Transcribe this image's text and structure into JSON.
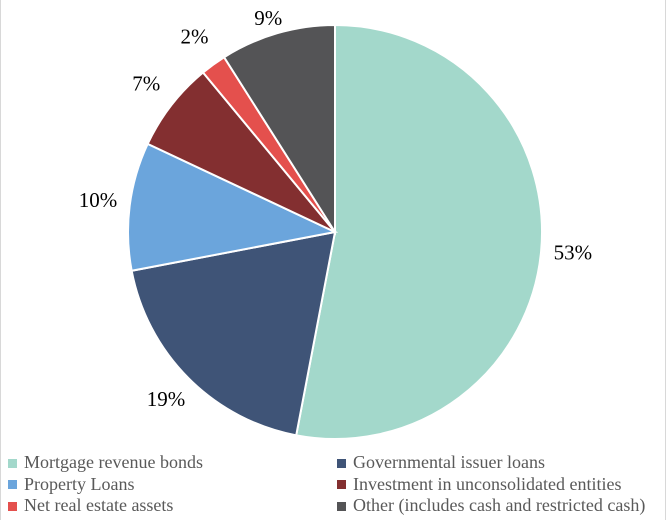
{
  "chart_data": {
    "type": "pie",
    "title": "",
    "direction": "clockwise",
    "start_angle_deg": 0,
    "data_labels": "percent-outside",
    "legend_position": "bottom",
    "legend_columns": 2,
    "label_color": "#000000",
    "legend_text_color": "#595959",
    "slice_border_color": "#ffffff",
    "slices": [
      {
        "label": "Mortgage revenue bonds",
        "value": 53,
        "display": "53%",
        "color": "#a3d8cb"
      },
      {
        "label": "Governmental issuer loans",
        "value": 19,
        "display": "19%",
        "color": "#3f5477"
      },
      {
        "label": "Property Loans",
        "value": 10,
        "display": "10%",
        "color": "#6ba5dc"
      },
      {
        "label": "Investment in unconsolidated entities",
        "value": 7,
        "display": "7%",
        "color": "#832f30"
      },
      {
        "label": "Net real estate assets",
        "value": 2,
        "display": "2%",
        "color": "#e4504d"
      },
      {
        "label": "Other (includes cash and restricted cash)",
        "value": 9,
        "display": "9%",
        "color": "#545456"
      }
    ]
  }
}
